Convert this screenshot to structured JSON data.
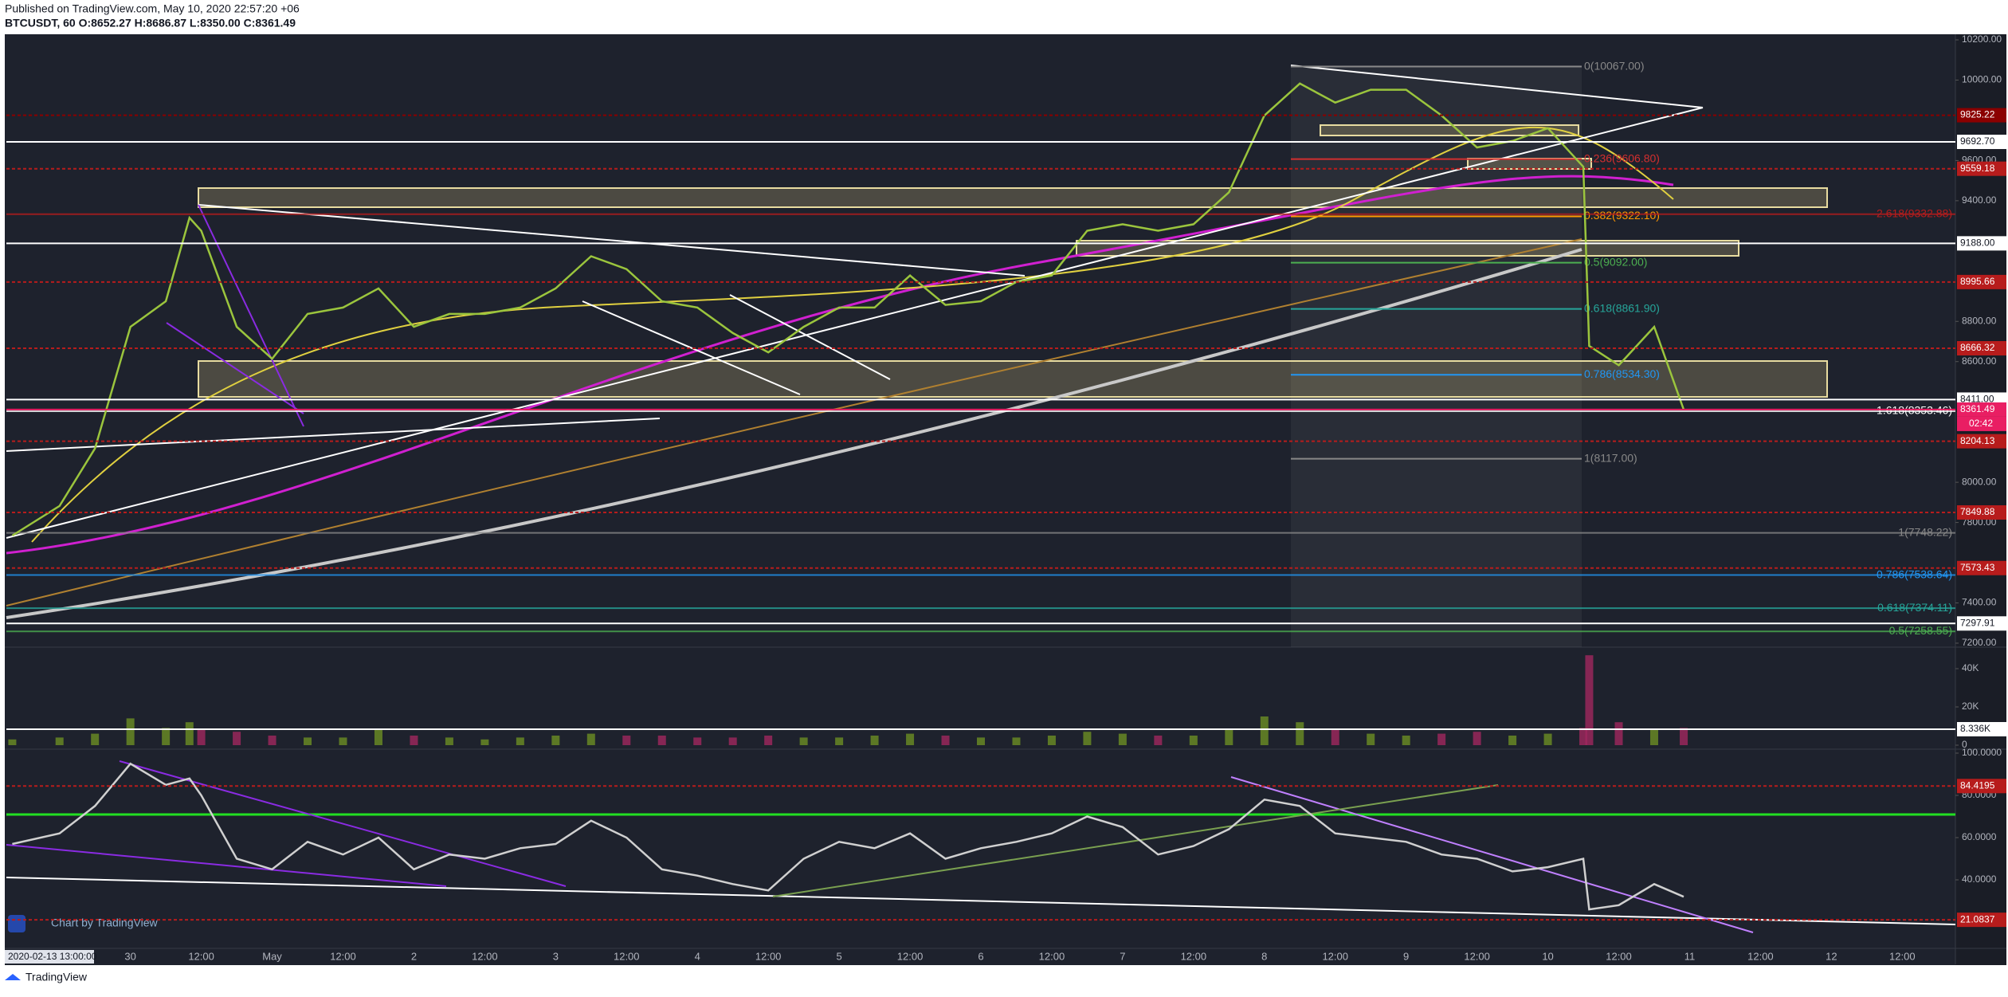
{
  "header": {
    "published": "Published on TradingView.com, May 10, 2020 22:57:20 +06",
    "symbol": "BTCUSDT, 60 O:8652.27 H:8686.87 L:8350.00 C:8361.49"
  },
  "cursor_label": "2020-02-13 13:00:00",
  "watermark": "Chart by TradingView",
  "footer": "TradingView",
  "chart_data": [
    {
      "type": "line",
      "color": "#9bc53d",
      "x": [
        -20,
        -12,
        -6,
        0,
        6,
        10,
        12,
        18,
        24,
        30,
        36,
        42,
        48,
        54,
        60,
        66,
        72,
        78,
        84,
        90,
        96,
        102,
        108,
        114,
        120,
        126,
        132,
        138,
        144,
        150,
        156,
        162,
        168,
        174,
        180,
        186,
        192,
        198,
        204,
        210,
        216,
        222,
        228,
        234,
        240,
        246,
        247,
        252,
        258,
        263
      ],
      "values": [
        7735,
        7882,
        8168,
        8773,
        8900,
        9315,
        9250,
        8773,
        8614,
        8837,
        8869,
        8964,
        8773,
        8837,
        8837,
        8869,
        8964,
        9124,
        9060,
        8900,
        8869,
        8742,
        8646,
        8773,
        8869,
        8869,
        9028,
        8882,
        8900,
        8996,
        9028,
        9251,
        9283,
        9251,
        9283,
        9442,
        9824,
        9983,
        9888,
        9952,
        9952,
        9824,
        9665,
        9697,
        9761,
        9569,
        8678,
        8582,
        8773,
        8361.49
      ],
      "xlim": [
        -21,
        309
      ],
      "xticks": [
        {
          "value": 0,
          "label": "30"
        },
        {
          "value": 12,
          "label": "12:00"
        },
        {
          "value": 24,
          "label": "May"
        },
        {
          "value": 36,
          "label": "12:00"
        },
        {
          "value": 48,
          "label": "2"
        },
        {
          "value": 60,
          "label": "12:00"
        },
        {
          "value": 72,
          "label": "3"
        },
        {
          "value": 84,
          "label": "12:00"
        },
        {
          "value": 96,
          "label": "4"
        },
        {
          "value": 108,
          "label": "12:00"
        },
        {
          "value": 120,
          "label": "5"
        },
        {
          "value": 132,
          "label": "12:00"
        },
        {
          "value": 144,
          "label": "6"
        },
        {
          "value": 156,
          "label": "12:00"
        },
        {
          "value": 168,
          "label": "7"
        },
        {
          "value": 180,
          "label": "12:00"
        },
        {
          "value": 192,
          "label": "8"
        },
        {
          "value": 204,
          "label": "12:00"
        },
        {
          "value": 216,
          "label": "9"
        },
        {
          "value": 228,
          "label": "12:00"
        },
        {
          "value": 240,
          "label": "10"
        },
        {
          "value": 252,
          "label": "12:00"
        },
        {
          "value": 264,
          "label": "11"
        },
        {
          "value": 276,
          "label": "12:00"
        },
        {
          "value": 288,
          "label": "12"
        },
        {
          "value": 300,
          "label": "12:00"
        }
      ],
      "ylim": [
        7200,
        10200
      ],
      "yticks": [
        {
          "value": 10200,
          "label": "10200.00"
        },
        {
          "value": 10000,
          "label": "10000.00"
        },
        {
          "value": 9600,
          "label": "9600.00"
        },
        {
          "value": 9400,
          "label": "9400.00"
        },
        {
          "value": 8800,
          "label": "8800.00"
        },
        {
          "value": 8600,
          "label": "8600.00"
        },
        {
          "value": 8000,
          "label": "8000.00"
        },
        {
          "value": 7800,
          "label": "7800.00"
        },
        {
          "value": 7400,
          "label": "7400.00"
        },
        {
          "value": 7200,
          "label": "7200.00"
        }
      ],
      "levels": [
        {
          "value": 9825.22,
          "label": "9825.22",
          "color": "#8b0000",
          "dashed": true
        },
        {
          "value": 9692.7,
          "label": "9692.70",
          "color": "#ffffff"
        },
        {
          "value": 9559.18,
          "label": "9559.18",
          "color": "#b71c1c",
          "dashed": true
        },
        {
          "value": 9188,
          "label": "9188.00",
          "color": "#ffffff"
        },
        {
          "value": 8995.66,
          "label": "8995.66",
          "color": "#b71c1c",
          "dashed": true
        },
        {
          "value": 8666.32,
          "label": "8666.32",
          "color": "#b71c1c",
          "dashed": true
        },
        {
          "value": 8411,
          "label": "8411.00",
          "color": "#ffffff"
        },
        {
          "value": 8361.49,
          "label": "8361.49",
          "color": "#e91e63",
          "current": true
        },
        {
          "value": 8204.13,
          "label": "8204.13",
          "color": "#b71c1c",
          "dashed": true
        },
        {
          "value": 7849.88,
          "label": "7849.88",
          "color": "#b71c1c",
          "dashed": true
        },
        {
          "value": 7573.43,
          "label": "7573.43",
          "color": "#b71c1c",
          "dashed": true
        },
        {
          "value": 7297.91,
          "label": "7297.91",
          "color": "#ffffff"
        }
      ],
      "countdown": "02:42",
      "fib_labels": [
        {
          "value": 10067,
          "label": "0(10067.00)",
          "color": "#888888"
        },
        {
          "value": 9606.8,
          "label": "0.236(9606.80)",
          "color": "#d32f2f"
        },
        {
          "value": 9322.1,
          "label": "0.382(9322.10)",
          "color": "#ff9800"
        },
        {
          "value": 9092,
          "label": "0.5(9092.00)",
          "color": "#4caf50"
        },
        {
          "value": 8861.9,
          "label": "0.618(8861.90)",
          "color": "#26a69a"
        },
        {
          "value": 8534.3,
          "label": "0.786(8534.30)",
          "color": "#2196f3"
        },
        {
          "value": 8117,
          "label": "1(8117.00)",
          "color": "#888888"
        }
      ],
      "fib_ext_labels": [
        {
          "value": 9332.88,
          "label": "2.618(9332.88)",
          "color": "#b71c1c"
        },
        {
          "value": 8353.46,
          "label": "1.618(8353.46)",
          "color": "#ffffff"
        },
        {
          "value": 7748.22,
          "label": "1(7748.22)",
          "color": "#888888"
        },
        {
          "value": 7538.64,
          "label": "0.786(7538.64)",
          "color": "#2196f3"
        },
        {
          "value": 7374.11,
          "label": "0.618(7374.11)",
          "color": "#26a69a"
        },
        {
          "value": 7258.55,
          "label": "0.5(7258.55)",
          "color": "#4caf50"
        }
      ]
    },
    {
      "type": "bar",
      "color": "#6b8e23",
      "down_color": "#a0285e",
      "x": [
        -20,
        -12,
        -6,
        0,
        6,
        10,
        12,
        18,
        24,
        30,
        36,
        42,
        48,
        54,
        60,
        66,
        72,
        78,
        84,
        90,
        96,
        102,
        108,
        114,
        120,
        126,
        132,
        138,
        144,
        150,
        156,
        162,
        168,
        174,
        180,
        186,
        192,
        198,
        204,
        210,
        216,
        222,
        228,
        234,
        240,
        246,
        247,
        252,
        258,
        263
      ],
      "values": [
        3000,
        4000,
        6000,
        14000,
        9000,
        12000,
        8000,
        7000,
        5000,
        4000,
        4000,
        8000,
        5000,
        4000,
        3000,
        4000,
        5000,
        6000,
        5000,
        5000,
        4000,
        4000,
        5000,
        4000,
        4000,
        5000,
        6000,
        5000,
        4000,
        4000,
        5000,
        7000,
        6000,
        5000,
        5000,
        8000,
        15000,
        12000,
        8000,
        6000,
        5000,
        6000,
        7000,
        5000,
        6000,
        9000,
        47000,
        12000,
        8000,
        9000
      ],
      "ylim": [
        0,
        50000
      ],
      "yticks": [
        {
          "value": 40000,
          "label": "40K"
        },
        {
          "value": 20000,
          "label": "20K"
        },
        0
      ],
      "levels": [
        {
          "value": 8336,
          "label": "8.336K",
          "color": "#ffffff"
        }
      ]
    },
    {
      "type": "line",
      "color": "#d0d0d0",
      "x": [
        -20,
        -12,
        -6,
        0,
        6,
        10,
        12,
        18,
        24,
        30,
        36,
        42,
        48,
        54,
        60,
        66,
        72,
        78,
        84,
        90,
        96,
        102,
        108,
        114,
        120,
        126,
        132,
        138,
        144,
        150,
        156,
        162,
        168,
        174,
        180,
        186,
        192,
        198,
        204,
        210,
        216,
        222,
        228,
        234,
        240,
        246,
        247,
        252,
        258,
        263
      ],
      "values": [
        57,
        62,
        75,
        95,
        85,
        88,
        80,
        50,
        45,
        58,
        52,
        60,
        45,
        52,
        50,
        55,
        57,
        68,
        60,
        45,
        42,
        38,
        35,
        50,
        58,
        55,
        62,
        50,
        55,
        58,
        62,
        70,
        65,
        52,
        56,
        64,
        78,
        75,
        62,
        60,
        58,
        52,
        50,
        44,
        46,
        50,
        26,
        28,
        38,
        32
      ],
      "ylim": [
        8,
        100
      ],
      "yticks": [
        {
          "value": 100,
          "label": "100.0000"
        },
        {
          "value": 80,
          "label": "80.0000"
        },
        {
          "value": 60,
          "label": "60.0000"
        },
        {
          "value": 40,
          "label": "40.0000"
        }
      ],
      "levels": [
        {
          "value": 84.4195,
          "label": "84.4195",
          "color": "#b71c1c",
          "dashed": true
        },
        {
          "value": 21.0837,
          "label": "21.0837",
          "color": "#b71c1c",
          "dashed": true
        }
      ]
    }
  ]
}
